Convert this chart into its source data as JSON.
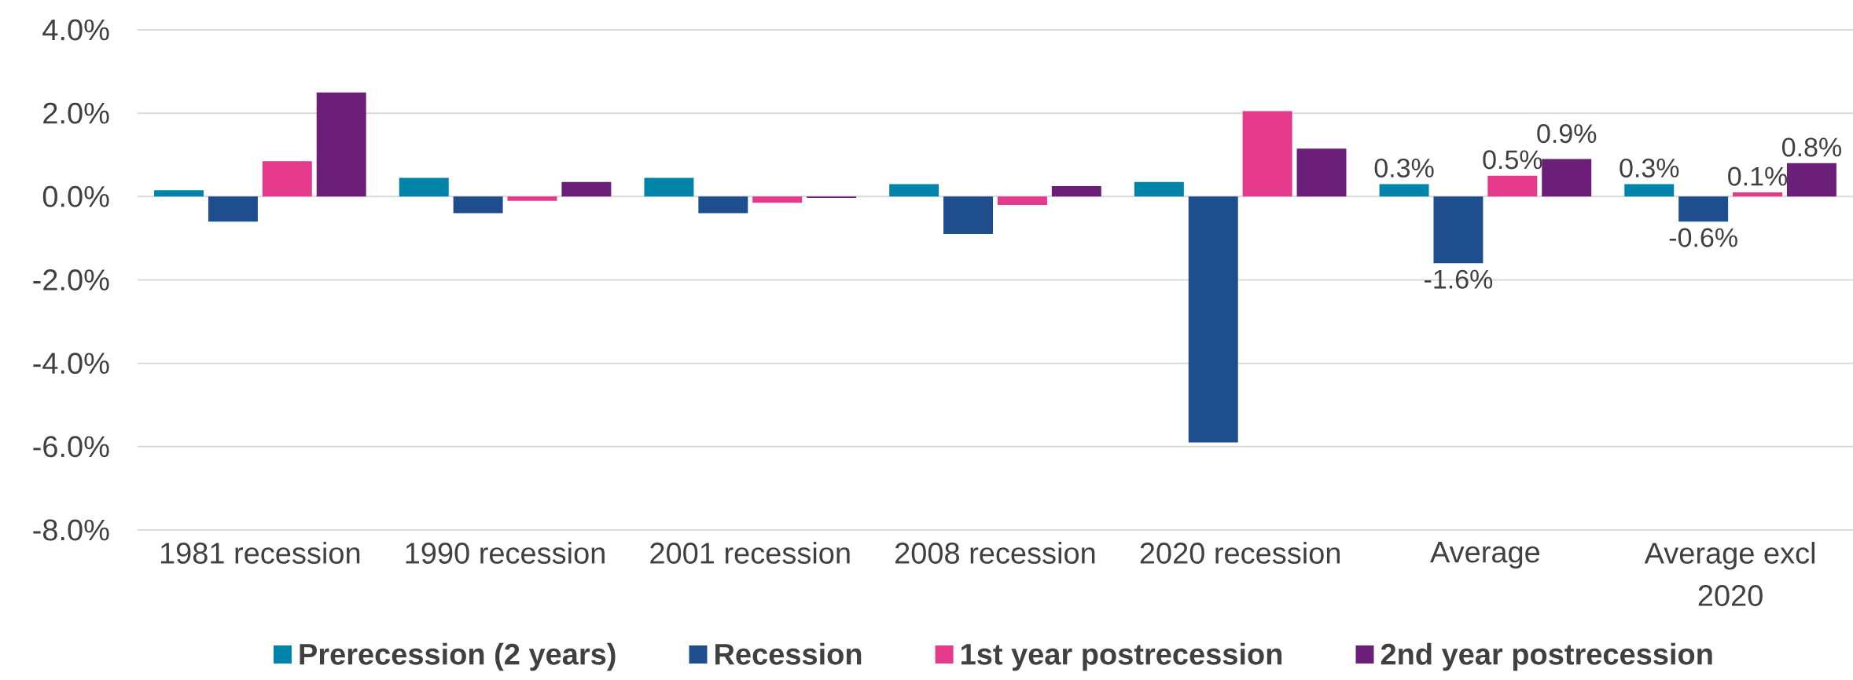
{
  "chart_data": {
    "type": "bar",
    "categories": [
      "1981 recession",
      "1990 recession",
      "2001 recession",
      "2008 recession",
      "2020 recession",
      "Average",
      "Average excl 2020"
    ],
    "series": [
      {
        "name": "Prerecession (2 years)",
        "color": "#0084a9",
        "values": [
          0.15,
          0.45,
          0.45,
          0.3,
          0.35,
          0.3,
          0.3
        ],
        "value_labels": [
          null,
          null,
          null,
          null,
          null,
          "0.3%",
          "0.3%"
        ]
      },
      {
        "name": "Recession",
        "color": "#1f4e8f",
        "values": [
          -0.6,
          -0.4,
          -0.4,
          -0.9,
          -5.9,
          -1.6,
          -0.6
        ],
        "value_labels": [
          null,
          null,
          null,
          null,
          null,
          "-1.6%",
          "-0.6%"
        ]
      },
      {
        "name": "1st year postrecession",
        "color": "#e5398a",
        "values": [
          0.85,
          -0.1,
          -0.15,
          -0.2,
          2.05,
          0.5,
          0.1
        ],
        "value_labels": [
          null,
          null,
          null,
          null,
          null,
          "0.5%",
          "0.1%"
        ]
      },
      {
        "name": "2nd year postrecession",
        "color": "#6c1f78",
        "values": [
          2.5,
          0.35,
          -0.03,
          0.25,
          1.15,
          0.9,
          0.8
        ],
        "value_labels": [
          null,
          null,
          null,
          null,
          null,
          "0.9%",
          "0.8%"
        ]
      }
    ],
    "ylim": [
      -8,
      4
    ],
    "yticks": [
      {
        "value": -8,
        "label": "-8.0%"
      },
      {
        "value": -6,
        "label": "-6.0%"
      },
      {
        "value": -4,
        "label": "-4.0%"
      },
      {
        "value": -2,
        "label": "-2.0%"
      },
      {
        "value": 0,
        "label": "0.0%"
      },
      {
        "value": 2,
        "label": "2.0%"
      },
      {
        "value": 4,
        "label": "4.0%"
      }
    ],
    "grid": "y",
    "legend": "bottom"
  }
}
